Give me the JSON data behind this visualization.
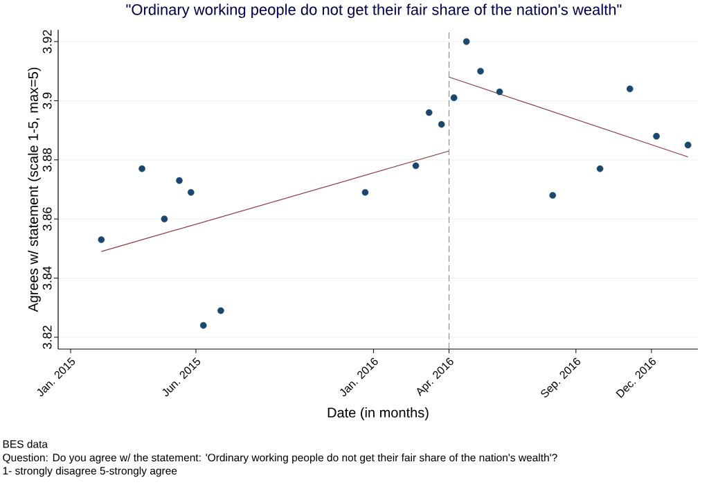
{
  "chart_data": {
    "type": "scatter",
    "title": "\"Ordinary working people do not get their fair share of the nation's wealth\"",
    "xlabel": "Date (in months)",
    "ylabel": "Agrees w/ statement (scale 1-5, max=5)",
    "annotations": [
      "BES data",
      "Question: Do you agree w/ the statement: 'Ordinary working people do not get their fair share of the nation's wealth'?",
      "1- strongly disagree 5-strongly agree"
    ],
    "xlim": [
      "2014-12-17",
      "2017-01-26"
    ],
    "ylim": [
      3.816,
      3.924
    ],
    "xticks": [
      {
        "value": "2015-01-01",
        "label": "Jan. 2015"
      },
      {
        "value": "2015-06-01",
        "label": "Jun. 2015"
      },
      {
        "value": "2016-01-01",
        "label": "Jan. 2016"
      },
      {
        "value": "2016-04-01",
        "label": "Apr. 2016"
      },
      {
        "value": "2016-09-01",
        "label": "Sep. 2016"
      },
      {
        "value": "2016-12-01",
        "label": "Dec. 2016"
      }
    ],
    "yticks": [
      3.82,
      3.84,
      3.86,
      3.88,
      3.9,
      3.92
    ],
    "grid": "y",
    "series": [
      {
        "type": "scatter",
        "marker": "circle",
        "color": "#1a476f",
        "x": [
          "2015-02-07",
          "2015-03-28",
          "2015-04-24",
          "2015-05-12",
          "2015-05-26",
          "2015-06-10",
          "2015-07-01",
          "2015-12-22",
          "2016-02-21",
          "2016-03-08",
          "2016-03-23",
          "2016-04-07",
          "2016-04-22",
          "2016-05-09",
          "2016-06-01",
          "2016-08-04",
          "2016-09-30",
          "2016-11-05",
          "2016-12-07",
          "2017-01-14"
        ],
        "values": [
          3.853,
          3.877,
          3.86,
          3.873,
          3.869,
          3.824,
          3.829,
          3.869,
          3.878,
          3.896,
          3.892,
          3.901,
          3.92,
          3.91,
          3.903,
          3.868,
          3.877,
          3.904,
          3.888,
          3.885
        ]
      },
      {
        "type": "line",
        "marker": "none",
        "color": "#90353b",
        "x": [
          "2015-02-07",
          "2016-04-01"
        ],
        "values": [
          3.849,
          3.883
        ]
      },
      {
        "type": "line",
        "marker": "none",
        "color": "#90353b",
        "x": [
          "2016-04-01",
          "2017-01-14"
        ],
        "values": [
          3.908,
          3.881
        ]
      }
    ],
    "ref_lines": [
      {
        "axis": "x",
        "value": "2016-04-01",
        "color": "#8c8c8c",
        "line_style": "dashed"
      }
    ]
  }
}
